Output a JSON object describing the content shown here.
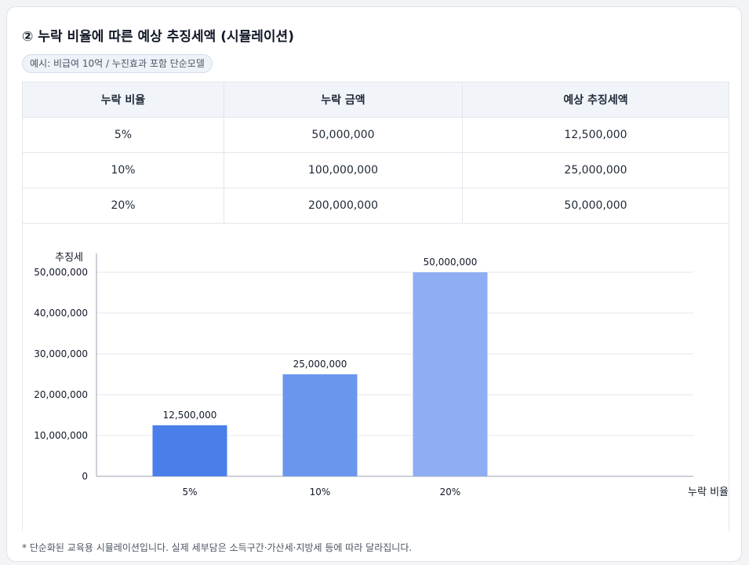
{
  "panel": {
    "title": "② 누락 비율에 따른 예상 추징세액 (시뮬레이션)",
    "badge": "예시: 비급여 10억 / 누진효과 포함 단순모델",
    "footnote": "* 단순화된 교육용 시뮬레이션입니다. 실제 세부담은 소득구간·가산세·지방세 등에 따라 달라집니다."
  },
  "table": {
    "headers": [
      "누락 비율",
      "누락 금액",
      "예상 추징세액"
    ],
    "rows": [
      [
        "5%",
        "50,000,000",
        "12,500,000"
      ],
      [
        "10%",
        "100,000,000",
        "25,000,000"
      ],
      [
        "20%",
        "200,000,000",
        "50,000,000"
      ]
    ]
  },
  "chart_data": {
    "type": "bar",
    "categories": [
      "5%",
      "10%",
      "20%"
    ],
    "values": [
      12500000,
      25000000,
      50000000
    ],
    "value_labels": [
      "12,500,000",
      "25,000,000",
      "50,000,000"
    ],
    "xlabel": "누락 비율",
    "ylabel": "추징세",
    "ylim": [
      0,
      50000000
    ],
    "yticks": [
      0,
      10000000,
      20000000,
      30000000,
      40000000,
      50000000
    ],
    "ytick_labels": [
      "0",
      "10,000,000",
      "20,000,000",
      "30,000,000",
      "40,000,000",
      "50,000,000"
    ],
    "grid": true,
    "bar_colors": [
      "#4a7fea",
      "#6b96ee",
      "#8eadf3"
    ]
  }
}
